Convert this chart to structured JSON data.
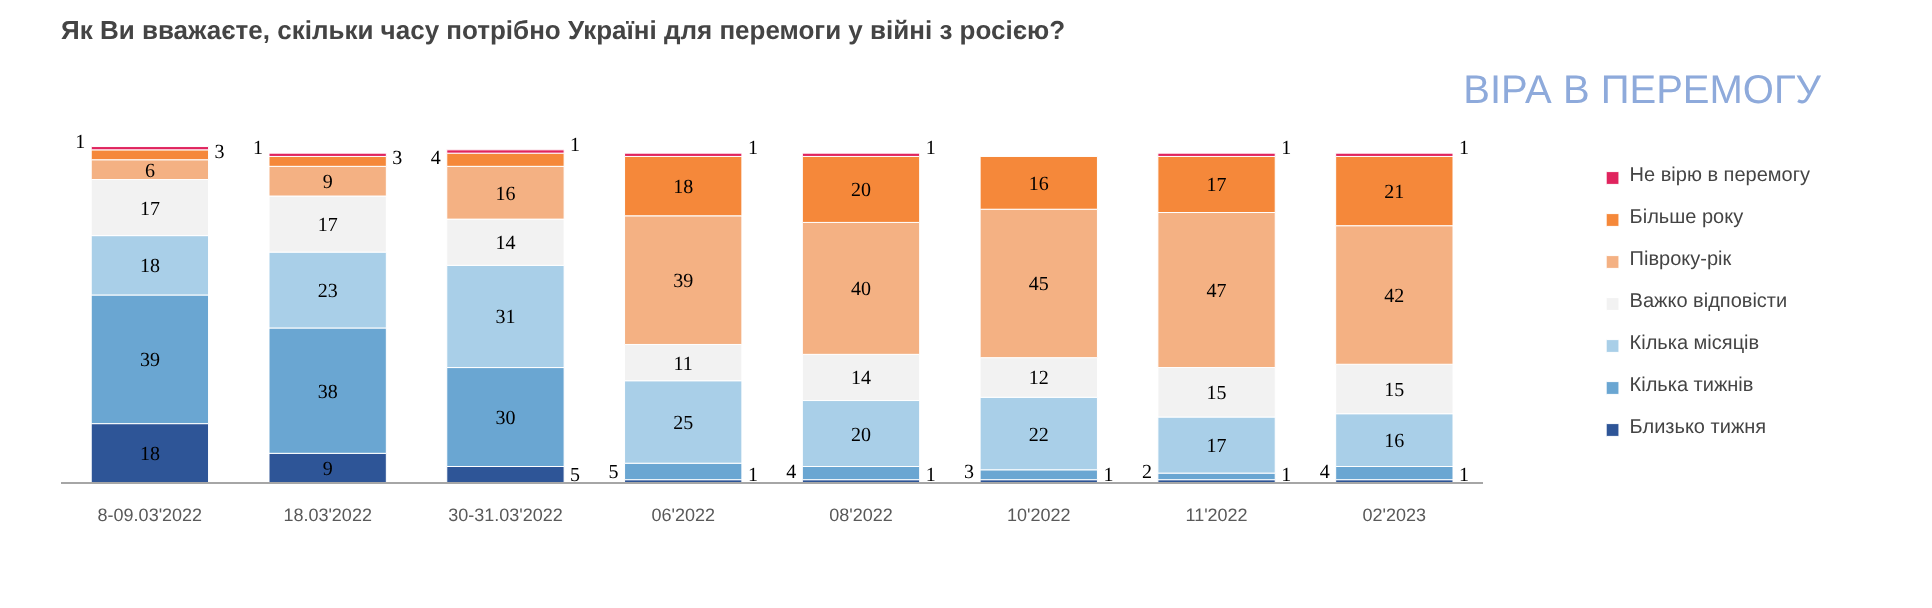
{
  "chart_data": {
    "type": "bar",
    "stacked": true,
    "data_labels": true,
    "legend": "right",
    "grid": false,
    "title": "Як Ви вважаєте, скільки часу потрібно Україні для перемоги у війні з росією?",
    "subtitle": "ВІРА В ПЕРЕМОГУ",
    "categories": [
      "8-09.03'2022",
      "18.03'2022",
      "30-31.03'2022",
      "06'2022",
      "08'2022",
      "10'2022",
      "11'2022",
      "02'2023"
    ],
    "series": [
      {
        "name": "Близько тижня",
        "color": "#2e5597",
        "values": [
          18,
          9,
          5,
          1,
          1,
          1,
          1,
          1
        ]
      },
      {
        "name": "Кілька тижнів",
        "color": "#6aa6d2",
        "values": [
          39,
          38,
          30,
          5,
          4,
          3,
          2,
          4
        ]
      },
      {
        "name": "Кілька місяців",
        "color": "#a9cfe8",
        "values": [
          18,
          23,
          31,
          25,
          20,
          22,
          17,
          16
        ]
      },
      {
        "name": "Важко відповісти",
        "color": "#f2f2f2",
        "values": [
          17,
          17,
          14,
          11,
          14,
          12,
          15,
          15
        ]
      },
      {
        "name": "Півроку-рік",
        "color": "#f4b183",
        "values": [
          6,
          9,
          16,
          39,
          40,
          45,
          47,
          42
        ]
      },
      {
        "name": "Більше року",
        "color": "#f5883a",
        "values": [
          3,
          3,
          4,
          18,
          20,
          16,
          17,
          21
        ]
      },
      {
        "name": "Не вірю в перемогу",
        "color": "#e0245e",
        "values": [
          1,
          1,
          1,
          1,
          1,
          null,
          1,
          1
        ]
      }
    ]
  }
}
